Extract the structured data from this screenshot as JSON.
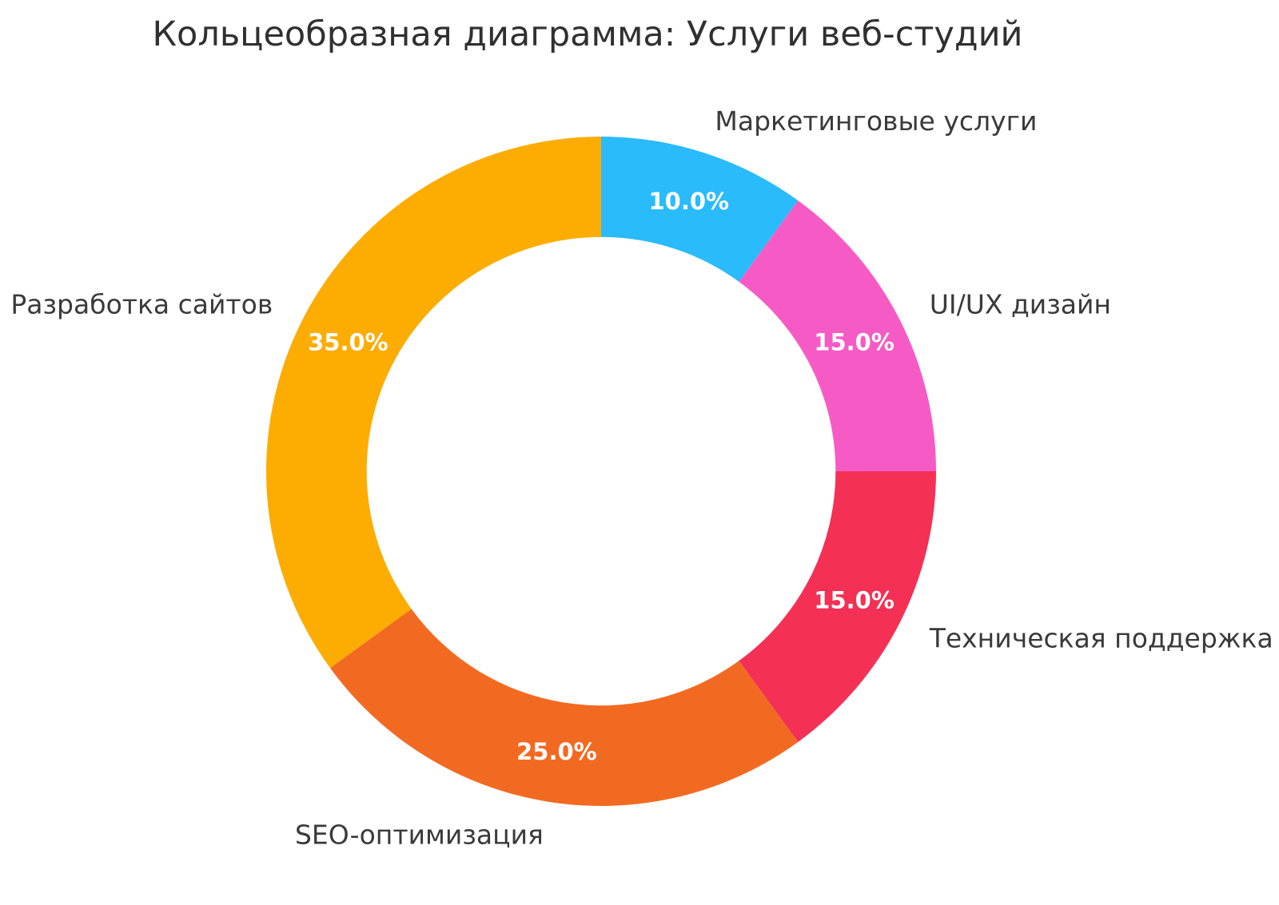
{
  "title": "Кольцеобразная диаграмма: Услуги веб-студий",
  "chart_data": {
    "type": "pie",
    "subtype": "donut",
    "title": "Кольцеобразная диаграмма: Услуги веб-студий",
    "categories": [
      "Маркетинговые услуги",
      "UI/UX дизайн",
      "Техническая поддержка",
      "SEO-оптимизация",
      "Разработка сайтов"
    ],
    "values": [
      10,
      15,
      15,
      25,
      35
    ],
    "percent_labels": [
      "10.0%",
      "15.0%",
      "15.0%",
      "25.0%",
      "35.0%"
    ],
    "colors": [
      "#29BBFC",
      "#F65BC5",
      "#F43055",
      "#F26A21",
      "#FDAC02"
    ],
    "hole": 0.7,
    "start_angle_deg": 0,
    "direction": "clockwise",
    "legend": "none",
    "title_color": "#303030",
    "label_color": "#3a3a3a",
    "percent_label_color": "#ffffff",
    "background_color": "#ffffff"
  }
}
